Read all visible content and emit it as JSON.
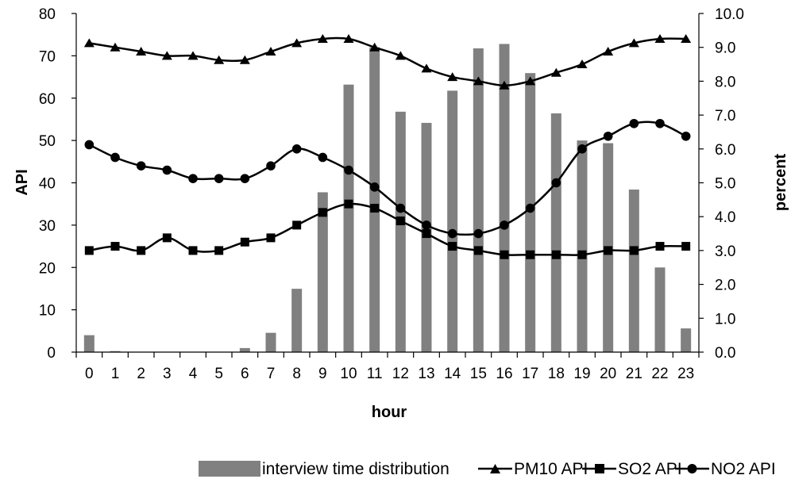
{
  "chart_data": {
    "type": "bar+line",
    "x": [
      "0",
      "1",
      "2",
      "3",
      "4",
      "5",
      "6",
      "7",
      "8",
      "9",
      "10",
      "11",
      "12",
      "13",
      "14",
      "15",
      "16",
      "17",
      "18",
      "19",
      "20",
      "21",
      "22",
      "23"
    ],
    "xlabel": "hour",
    "ylabel": "API",
    "y2label": "percent",
    "ylim": [
      0,
      80
    ],
    "y2lim": [
      0,
      10
    ],
    "yticks": [
      "0",
      "10",
      "20",
      "30",
      "40",
      "50",
      "60",
      "70",
      "80"
    ],
    "y2ticks": [
      "0.0",
      "1.0",
      "2.0",
      "3.0",
      "4.0",
      "5.0",
      "6.0",
      "7.0",
      "8.0",
      "9.0",
      "10.0"
    ],
    "grid": false,
    "legend_position": "bottom",
    "bars": {
      "name": "interview time distribution",
      "axis": "right",
      "color": "#808080",
      "values": [
        0.5,
        0.03,
        0,
        0,
        0,
        0,
        0.12,
        0.57,
        1.87,
        4.72,
        7.9,
        9.0,
        7.1,
        6.77,
        7.72,
        8.97,
        9.1,
        8.24,
        7.05,
        6.25,
        6.17,
        4.8,
        2.5,
        0.7
      ]
    },
    "series": [
      {
        "name": "PM10 API",
        "marker": "triangle",
        "axis": "left",
        "values": [
          73,
          72,
          71,
          70,
          70,
          69,
          69,
          71,
          73,
          74,
          74,
          72,
          70,
          67,
          65,
          64,
          63,
          64,
          66,
          68,
          71,
          73,
          74,
          74
        ]
      },
      {
        "name": "SO2 API",
        "marker": "square",
        "axis": "left",
        "values": [
          24,
          25,
          24,
          27,
          24,
          24,
          26,
          27,
          30,
          33,
          35,
          34,
          31,
          28,
          25,
          24,
          23,
          23,
          23,
          23,
          24,
          24,
          25,
          25
        ]
      },
      {
        "name": "NO2 API",
        "marker": "circle",
        "axis": "left",
        "values": [
          49,
          46,
          44,
          43,
          41,
          41,
          41,
          44,
          48,
          46,
          43,
          39,
          34,
          30,
          28,
          28,
          30,
          34,
          40,
          48,
          51,
          54,
          54,
          51
        ]
      }
    ]
  }
}
